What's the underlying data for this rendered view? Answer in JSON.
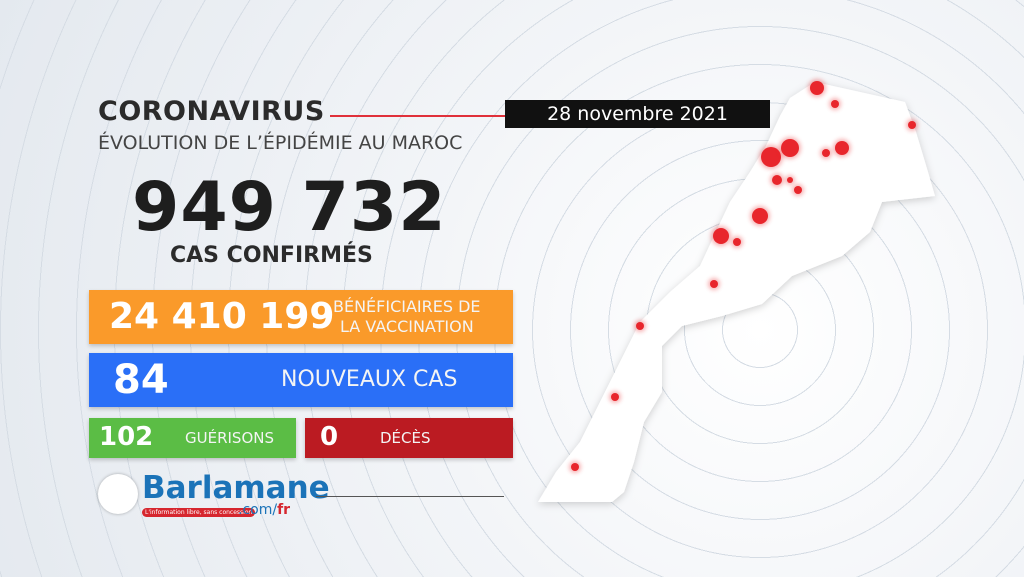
{
  "header": {
    "title": "CORONAVIRUS",
    "subtitle": "ÉVOLUTION DE L’ÉPIDÉMIE AU MAROC",
    "date": "28 novembre 2021"
  },
  "confirmed": {
    "value": "949 732",
    "label": "CAS CONFIRMÉS"
  },
  "vaccination": {
    "value": "24 410 199",
    "label_line1": "BÉNÉFICIAIRES DE",
    "label_line2": "LA VACCINATION",
    "color": "#fa9a2a"
  },
  "new_cases": {
    "value": "84",
    "label": "NOUVEAUX CAS",
    "color": "#2a6ff7"
  },
  "recoveries": {
    "value": "102",
    "label": "GUÉRISONS",
    "color": "#5bbd45"
  },
  "deaths": {
    "value": "0",
    "label": "DÉCÈS",
    "color": "#bb1b22"
  },
  "logo": {
    "name": "Barlamane",
    "tagline": "L'information libre, sans concession",
    "domain": ".com/",
    "domain_suffix": "fr"
  },
  "map": {
    "dot_color": "#e8262c",
    "land_color": "#ffffff"
  }
}
